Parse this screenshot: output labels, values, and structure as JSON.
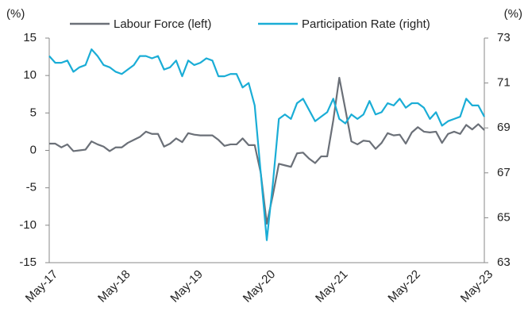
{
  "chart_data": {
    "type": "line",
    "y_label": "(%)",
    "y2_label": "(%)",
    "categories": [
      "May-17",
      null,
      null,
      null,
      null,
      null,
      null,
      null,
      null,
      null,
      null,
      null,
      "May-18",
      null,
      null,
      null,
      null,
      null,
      null,
      null,
      null,
      null,
      null,
      null,
      "May-19",
      null,
      null,
      null,
      null,
      null,
      null,
      null,
      null,
      null,
      null,
      null,
      "May-20",
      null,
      null,
      null,
      null,
      null,
      null,
      null,
      null,
      null,
      null,
      null,
      "May-21",
      null,
      null,
      null,
      null,
      null,
      null,
      null,
      null,
      null,
      null,
      null,
      "May-22",
      null,
      null,
      null,
      null,
      null,
      null,
      null,
      null,
      null,
      null,
      null,
      "May-23"
    ],
    "series": [
      {
        "name": "Labour Force (left)",
        "color": "#6b7078",
        "values": [
          0.9,
          0.9,
          0.4,
          0.8,
          -0.1,
          0,
          0.1,
          1.2,
          0.8,
          0.5,
          -0.1,
          0.4,
          0.4,
          1.0,
          1.4,
          1.8,
          2.5,
          2.2,
          2.2,
          0.5,
          0.9,
          1.6,
          1.1,
          2.3,
          2.1,
          2.0,
          2.0,
          2.0,
          1.4,
          0.6,
          0.8,
          0.8,
          1.6,
          0.7,
          0.7,
          -3.0,
          -9.8,
          -6.0,
          -1.8,
          -2.0,
          -2.2,
          -0.4,
          -0.3,
          -1.1,
          -1.7,
          -0.8,
          -0.8,
          4.0,
          9.7,
          5.5,
          1.2,
          0.8,
          1.3,
          1.2,
          0.2,
          1.0,
          2.3,
          2.0,
          2.1,
          0.9,
          2.4,
          3.1,
          2.5,
          2.4,
          2.5,
          1.0,
          2.2,
          2.5,
          2.2,
          3.4,
          2.8,
          3.5,
          2.7
        ]
      },
      {
        "name": "Participation Rate (right)",
        "color": "#1aadd6",
        "axis": "y2",
        "values": [
          72.2,
          71.9,
          71.9,
          72.0,
          71.5,
          71.7,
          71.8,
          72.5,
          72.2,
          71.8,
          71.7,
          71.5,
          71.4,
          71.6,
          71.8,
          72.2,
          72.2,
          72.1,
          72.2,
          71.6,
          71.7,
          72.0,
          71.3,
          72.0,
          71.8,
          71.9,
          72.1,
          72.0,
          71.3,
          71.3,
          71.4,
          71.4,
          70.8,
          71.0,
          70.0,
          67.0,
          64.0,
          66.5,
          69.4,
          69.6,
          69.4,
          70.1,
          70.3,
          69.8,
          69.3,
          69.5,
          69.7,
          70.3,
          69.4,
          69.2,
          69.6,
          69.4,
          69.6,
          70.2,
          69.6,
          69.7,
          70.1,
          70.0,
          70.3,
          69.9,
          70.1,
          70.1,
          69.9,
          69.4,
          69.7,
          69.1,
          69.3,
          69.4,
          69.5,
          70.3,
          70.0,
          70.0,
          69.5
        ]
      }
    ],
    "ylim": [
      -15,
      15
    ],
    "yticks": [
      -15,
      -10,
      -5,
      0,
      5,
      10,
      15
    ],
    "y2lim": [
      63,
      73
    ],
    "y2ticks": [
      63,
      65,
      67,
      69,
      71,
      73
    ],
    "legend": "top"
  }
}
